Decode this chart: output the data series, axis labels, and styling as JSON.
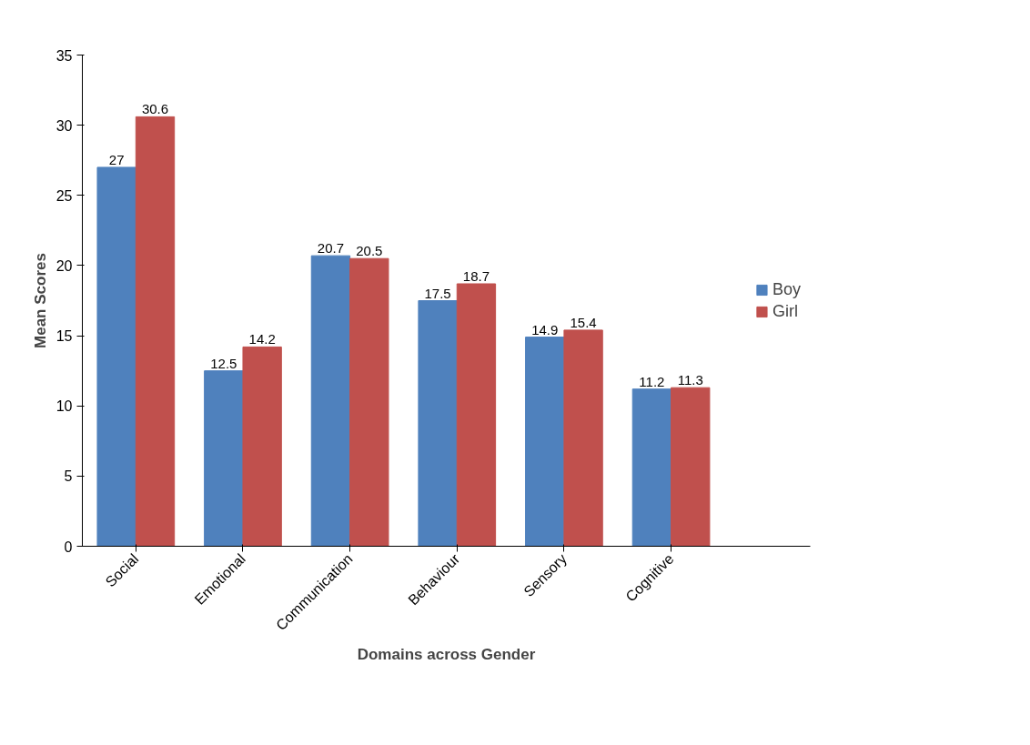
{
  "chart_data": {
    "type": "bar",
    "xlabel": "Domains across Gender",
    "ylabel": "Mean Scores",
    "categories": [
      "Social",
      "Emotional",
      "Communication",
      "Behaviour",
      "Sensory",
      "Cognitive"
    ],
    "series": [
      {
        "name": "Boy",
        "color": "#4f81bd",
        "values": [
          27,
          12.5,
          20.7,
          17.5,
          14.9,
          11.2
        ]
      },
      {
        "name": "Girl",
        "color": "#c0504d",
        "values": [
          30.6,
          14.2,
          20.5,
          18.7,
          15.4,
          11.3
        ]
      }
    ],
    "ylim": [
      0,
      35
    ],
    "yticks": [
      0,
      5,
      10,
      15,
      20,
      25,
      30,
      35
    ],
    "grid": false,
    "legend": "right",
    "data_labels": true
  }
}
